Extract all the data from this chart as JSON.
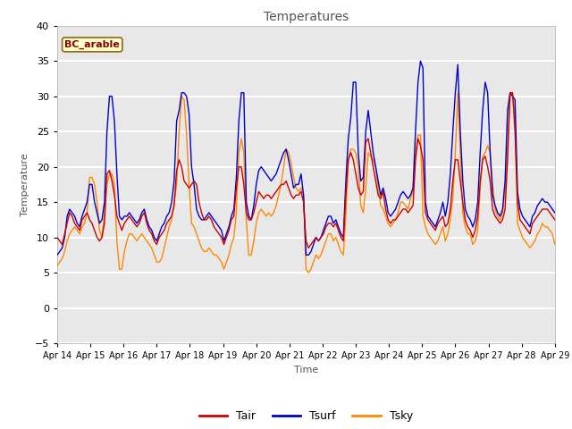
{
  "title": "Temperatures",
  "xlabel": "Time",
  "ylabel": "Temperature",
  "ylim": [
    -5,
    40
  ],
  "yticks": [
    -5,
    0,
    5,
    10,
    15,
    20,
    25,
    30,
    35,
    40
  ],
  "x_tick_labels": [
    "Apr 14",
    "Apr 15",
    "Apr 16",
    "Apr 17",
    "Apr 18",
    "Apr 19",
    "Apr 20",
    "Apr 21",
    "Apr 22",
    "Apr 23",
    "Apr 24",
    "Apr 25",
    "Apr 26",
    "Apr 27",
    "Apr 28",
    "Apr 29"
  ],
  "annotation": "BC_arable",
  "plot_bg": "#e8e8e8",
  "fig_bg": "#ffffff",
  "grid_color": "#d0d0d0",
  "line_colors": {
    "Tair": "#cc0000",
    "Tsurf": "#0000cc",
    "Tsky": "#ff8800"
  },
  "tair": [
    10.0,
    9.5,
    9.0,
    10.5,
    12.0,
    13.5,
    13.0,
    12.0,
    11.5,
    11.0,
    12.5,
    13.0,
    13.5,
    12.5,
    12.0,
    11.0,
    10.0,
    9.5,
    10.0,
    12.0,
    19.0,
    19.5,
    18.0,
    16.0,
    13.0,
    12.0,
    11.0,
    12.0,
    12.5,
    13.0,
    12.5,
    12.0,
    11.5,
    12.0,
    13.0,
    13.5,
    12.0,
    11.0,
    10.5,
    9.5,
    9.0,
    10.0,
    10.5,
    11.0,
    12.0,
    12.5,
    13.0,
    14.5,
    19.5,
    21.0,
    20.0,
    18.0,
    17.5,
    17.0,
    17.5,
    18.0,
    17.5,
    15.0,
    13.5,
    12.5,
    12.5,
    13.0,
    12.5,
    11.5,
    11.0,
    10.5,
    10.0,
    9.0,
    10.0,
    11.0,
    12.5,
    13.0,
    17.0,
    20.0,
    20.0,
    17.5,
    13.5,
    12.5,
    12.5,
    13.5,
    15.0,
    16.5,
    16.0,
    15.5,
    16.0,
    16.0,
    15.5,
    16.0,
    16.5,
    17.0,
    17.5,
    17.5,
    18.0,
    17.0,
    16.0,
    15.5,
    16.0,
    16.0,
    16.5,
    15.0,
    9.5,
    8.5,
    9.0,
    9.5,
    10.0,
    9.5,
    10.0,
    10.5,
    11.5,
    12.0,
    12.0,
    11.5,
    12.0,
    11.0,
    10.0,
    9.5,
    16.0,
    21.0,
    22.0,
    21.0,
    19.0,
    17.0,
    16.0,
    16.5,
    23.5,
    24.0,
    22.0,
    20.0,
    18.0,
    16.0,
    15.5,
    16.5,
    14.0,
    12.5,
    12.0,
    12.5,
    12.5,
    13.0,
    13.5,
    14.0,
    14.0,
    13.5,
    14.0,
    14.5,
    21.0,
    24.0,
    23.0,
    21.0,
    13.5,
    12.5,
    12.0,
    11.5,
    11.0,
    12.0,
    12.5,
    13.0,
    11.5,
    12.0,
    14.0,
    18.0,
    21.0,
    21.0,
    18.0,
    15.0,
    12.5,
    11.5,
    11.0,
    10.0,
    11.0,
    13.0,
    18.0,
    21.0,
    21.5,
    20.0,
    18.0,
    14.0,
    13.0,
    12.5,
    12.0,
    12.5,
    14.0,
    21.0,
    30.5,
    30.5,
    25.0,
    15.0,
    12.5,
    12.0,
    11.5,
    11.0,
    10.5,
    12.0,
    12.5,
    13.0,
    13.5,
    14.0,
    14.0,
    14.0,
    13.5,
    13.0,
    12.5
  ],
  "tsurf": [
    7.5,
    8.0,
    8.5,
    10.0,
    13.0,
    14.0,
    13.5,
    13.0,
    12.0,
    11.5,
    13.0,
    14.0,
    15.0,
    17.5,
    17.5,
    15.0,
    13.5,
    12.0,
    12.5,
    15.0,
    25.0,
    30.0,
    30.0,
    26.5,
    19.0,
    13.0,
    12.5,
    13.0,
    13.0,
    13.5,
    13.0,
    12.5,
    12.0,
    12.5,
    13.5,
    14.0,
    12.5,
    11.5,
    11.0,
    10.0,
    9.5,
    10.5,
    11.5,
    12.0,
    13.0,
    13.5,
    15.0,
    18.0,
    26.5,
    28.0,
    30.5,
    30.5,
    30.0,
    27.5,
    20.0,
    17.5,
    14.0,
    13.0,
    12.5,
    12.5,
    13.0,
    13.5,
    13.0,
    12.5,
    12.0,
    11.5,
    11.0,
    9.5,
    10.5,
    11.5,
    13.0,
    14.0,
    18.5,
    26.5,
    30.5,
    30.5,
    15.0,
    13.0,
    12.5,
    14.5,
    17.5,
    19.5,
    20.0,
    19.5,
    19.0,
    18.5,
    18.0,
    18.5,
    19.0,
    20.0,
    21.0,
    22.0,
    22.5,
    21.0,
    19.0,
    17.0,
    17.5,
    17.5,
    19.0,
    16.0,
    7.5,
    7.5,
    8.0,
    9.0,
    10.0,
    9.5,
    10.0,
    11.0,
    12.0,
    13.0,
    13.0,
    12.0,
    12.5,
    11.5,
    10.5,
    10.0,
    18.0,
    24.0,
    27.0,
    32.0,
    32.0,
    22.0,
    18.0,
    18.5,
    25.0,
    28.0,
    25.0,
    22.0,
    20.0,
    18.0,
    16.0,
    17.0,
    15.5,
    13.5,
    13.0,
    13.5,
    14.0,
    15.0,
    16.0,
    16.5,
    16.0,
    15.5,
    16.0,
    17.0,
    25.0,
    32.0,
    35.0,
    34.0,
    15.0,
    13.0,
    12.5,
    12.0,
    11.5,
    12.5,
    13.5,
    15.0,
    13.0,
    15.0,
    19.0,
    25.0,
    30.5,
    34.5,
    25.0,
    18.0,
    14.0,
    13.0,
    12.5,
    11.5,
    12.5,
    15.0,
    22.0,
    28.0,
    32.0,
    30.5,
    22.0,
    16.0,
    14.5,
    13.5,
    13.0,
    14.0,
    18.0,
    28.0,
    30.5,
    30.0,
    29.5,
    16.5,
    14.0,
    13.0,
    12.5,
    12.0,
    11.5,
    13.0,
    13.5,
    14.5,
    15.0,
    15.5,
    15.0,
    15.0,
    14.5,
    14.0,
    13.5
  ],
  "tsky": [
    6.0,
    6.5,
    7.0,
    8.0,
    9.5,
    10.5,
    11.0,
    11.5,
    11.0,
    10.5,
    11.5,
    12.0,
    13.5,
    18.5,
    18.5,
    17.5,
    15.0,
    11.0,
    10.0,
    13.5,
    17.5,
    19.0,
    19.0,
    17.5,
    9.5,
    5.5,
    5.5,
    8.0,
    9.5,
    10.5,
    10.5,
    10.0,
    9.5,
    10.0,
    10.5,
    10.0,
    9.5,
    9.0,
    8.5,
    7.5,
    6.5,
    6.5,
    7.0,
    8.5,
    10.0,
    11.5,
    12.5,
    15.0,
    17.5,
    25.0,
    30.0,
    29.5,
    24.5,
    17.5,
    12.0,
    11.5,
    10.5,
    9.5,
    8.5,
    8.0,
    8.0,
    8.5,
    8.0,
    7.5,
    7.5,
    7.0,
    6.5,
    5.5,
    6.5,
    7.5,
    9.0,
    10.0,
    13.5,
    22.0,
    24.0,
    22.0,
    12.5,
    7.5,
    7.5,
    9.5,
    12.0,
    13.5,
    14.0,
    13.5,
    13.0,
    13.5,
    13.0,
    13.5,
    14.5,
    16.0,
    17.5,
    20.0,
    22.5,
    22.0,
    20.5,
    18.5,
    17.0,
    16.5,
    17.0,
    16.0,
    5.5,
    5.0,
    5.5,
    6.5,
    7.5,
    7.0,
    7.5,
    8.5,
    9.5,
    10.5,
    10.5,
    9.5,
    10.0,
    9.0,
    8.0,
    7.5,
    13.0,
    21.0,
    22.5,
    22.5,
    22.0,
    20.0,
    14.5,
    13.5,
    17.0,
    22.0,
    21.5,
    21.0,
    20.0,
    17.0,
    14.5,
    14.0,
    13.0,
    12.0,
    11.5,
    12.0,
    12.5,
    13.5,
    15.0,
    15.0,
    14.5,
    14.0,
    15.5,
    16.5,
    22.0,
    24.5,
    24.5,
    13.0,
    11.5,
    10.5,
    10.0,
    9.5,
    9.0,
    9.5,
    10.5,
    11.5,
    9.5,
    10.5,
    12.5,
    15.5,
    22.0,
    30.5,
    22.0,
    13.5,
    11.5,
    10.5,
    10.5,
    9.0,
    9.5,
    11.0,
    17.0,
    21.5,
    22.0,
    23.0,
    22.0,
    17.5,
    14.0,
    13.0,
    12.5,
    13.5,
    16.5,
    23.0,
    30.0,
    30.5,
    27.0,
    12.0,
    11.0,
    10.0,
    9.5,
    9.0,
    8.5,
    9.0,
    9.5,
    10.5,
    11.0,
    12.0,
    11.5,
    11.5,
    11.0,
    10.5,
    9.0
  ]
}
